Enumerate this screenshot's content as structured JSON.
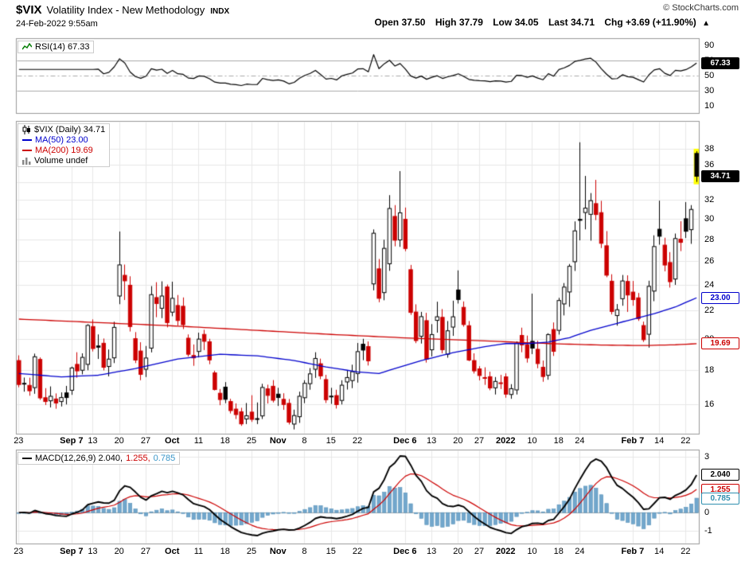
{
  "header": {
    "symbol": "$VIX",
    "title": "Volatility Index - New Methodology",
    "exchange": "INDX",
    "copyright": "© StockCharts.com",
    "datetime": "24-Feb-2022 9:55am",
    "quote": {
      "open_label": "Open",
      "open_value": "37.50",
      "high_label": "High",
      "high_value": "37.79",
      "low_label": "Low",
      "low_value": "34.05",
      "last_label": "Last",
      "last_value": "34.71",
      "chg_label": "Chg",
      "chg_value": "+3.69 (+11.90%)",
      "direction_arrow": "▲"
    }
  },
  "rsi_panel": {
    "legend": "RSI(14) 67.33",
    "period": 14,
    "y_tick_values": [
      90,
      70,
      50,
      30,
      10
    ],
    "guides": {
      "solid": [
        70,
        30
      ],
      "dashdot": [
        50
      ]
    },
    "badges": [
      {
        "text": "67.33",
        "value": 67.33,
        "style": "solid-black",
        "name": "rsi-value-badge"
      }
    ],
    "scale": {
      "min": 0,
      "max": 100
    }
  },
  "main_panel": {
    "legend_symbol": "$VIX (Daily) 34.71",
    "legend_ma50": "MA(50) 23.00",
    "legend_ma200": "MA(200) 19.69",
    "legend_volume": "Volume undef",
    "y_tick_values": [
      38,
      36,
      32,
      30,
      28,
      26,
      24,
      22,
      20,
      18,
      16
    ],
    "gridline_values": [
      38,
      36,
      34,
      32,
      30,
      28,
      26,
      24,
      22,
      20,
      18,
      16
    ],
    "badges": [
      {
        "text": "34.71",
        "value": 34.71,
        "style": "solid-black",
        "name": "last-price-badge"
      },
      {
        "text": "23.00",
        "value": 23.0,
        "style": "outline-blue",
        "name": "ma50-value-badge"
      },
      {
        "text": "19.69",
        "value": 19.69,
        "style": "outline-red",
        "name": "ma200-value-badge"
      }
    ],
    "scale": {
      "min": 14.5,
      "max": 41.8,
      "log": true
    }
  },
  "macd_panel": {
    "legend_line": "MACD(12,26,9) 2.040,",
    "legend_signal": "1.255,",
    "legend_hist": "0.785",
    "params": {
      "fast": 12,
      "slow": 26,
      "signal": 9
    },
    "y_tick_values": [
      3,
      0,
      -1
    ],
    "badges": [
      {
        "text": "2.040",
        "value": 2.04,
        "style": "outline-black",
        "name": "macd-value-badge"
      },
      {
        "text": "1.255",
        "value": 1.255,
        "style": "outline-red",
        "name": "signal-value-badge"
      },
      {
        "text": "0.785",
        "value": 0.785,
        "style": "outline-teal",
        "name": "histogram-value-badge"
      }
    ],
    "scale": {
      "min": -1.7,
      "max": 3.4
    }
  },
  "x_axis": {
    "ticks": [
      {
        "i": 0,
        "label": "23"
      },
      {
        "i": 10,
        "label": "Sep 7",
        "bold": true
      },
      {
        "i": 14,
        "label": "13"
      },
      {
        "i": 19,
        "label": "20"
      },
      {
        "i": 24,
        "label": "27"
      },
      {
        "i": 29,
        "label": "Oct",
        "bold": true
      },
      {
        "i": 34,
        "label": "11"
      },
      {
        "i": 39,
        "label": "18"
      },
      {
        "i": 44,
        "label": "25"
      },
      {
        "i": 49,
        "label": "Nov",
        "bold": true
      },
      {
        "i": 54,
        "label": "8"
      },
      {
        "i": 59,
        "label": "15"
      },
      {
        "i": 64,
        "label": "22"
      },
      {
        "i": 73,
        "label": "Dec 6",
        "bold": true
      },
      {
        "i": 78,
        "label": "13"
      },
      {
        "i": 83,
        "label": "20"
      },
      {
        "i": 87,
        "label": "27"
      },
      {
        "i": 92,
        "label": "2022",
        "bold": true
      },
      {
        "i": 97,
        "label": "10"
      },
      {
        "i": 102,
        "label": "18"
      },
      {
        "i": 106,
        "label": "24"
      },
      {
        "i": 116,
        "label": "Feb 7",
        "bold": true
      },
      {
        "i": 121,
        "label": "14"
      },
      {
        "i": 126,
        "label": "22"
      }
    ]
  },
  "colors": {
    "candle_up": "#000000",
    "candle_down": "#cc0000",
    "ma50": "#0000cc",
    "ma200": "#cc0000",
    "rsi_line": "#000000",
    "macd_line": "#000000",
    "signal_line": "#cc0000",
    "hist_fill": "#72a7cc",
    "hist_stroke": "#5590b8",
    "grid": "#e7e7e7",
    "guide": "#aaaaaa",
    "panel_border": "#999999",
    "highlight": "#ffff00"
  },
  "chart_data": {
    "type": "candlestick",
    "symbol": "$VIX",
    "timeframe": "Daily",
    "title": "$VIX Volatility Index - New Methodology (Daily)",
    "last": 34.71,
    "ma50_last": 23.0,
    "ma200_last": 19.69,
    "rsi_last": 67.33,
    "macd_last": 2.04,
    "signal_last": 1.255,
    "hist_last": 0.785,
    "candles": [
      [
        18.6,
        18.93,
        16.99,
        17.15
      ],
      [
        17.19,
        17.56,
        16.74,
        17.22
      ],
      [
        17.1,
        17.55,
        16.51,
        16.79
      ],
      [
        16.97,
        19.04,
        16.62,
        18.84
      ],
      [
        18.67,
        18.8,
        16.28,
        16.39
      ],
      [
        16.4,
        16.94,
        16.0,
        16.19
      ],
      [
        16.23,
        17.04,
        15.87,
        16.48
      ],
      [
        16.33,
        16.64,
        15.8,
        16.11
      ],
      [
        16.19,
        16.7,
        15.92,
        16.41
      ],
      [
        16.67,
        17.07,
        16.03,
        16.41
      ],
      [
        16.82,
        18.22,
        16.56,
        18.14
      ],
      [
        18.36,
        19.13,
        17.55,
        17.96
      ],
      [
        18.0,
        19.06,
        17.75,
        18.8
      ],
      [
        18.36,
        21.04,
        18.0,
        20.95
      ],
      [
        20.87,
        21.38,
        19.18,
        19.37
      ],
      [
        19.54,
        20.32,
        18.7,
        19.46
      ],
      [
        19.72,
        20.04,
        17.99,
        18.18
      ],
      [
        18.23,
        19.31,
        17.63,
        18.69
      ],
      [
        18.77,
        21.21,
        18.44,
        20.81
      ],
      [
        23.14,
        28.79,
        22.51,
        25.71
      ],
      [
        24.82,
        25.74,
        22.83,
        24.36
      ],
      [
        24.0,
        24.74,
        20.52,
        20.87
      ],
      [
        20.03,
        20.48,
        18.44,
        18.63
      ],
      [
        19.21,
        19.79,
        17.4,
        17.75
      ],
      [
        18.06,
        19.54,
        17.59,
        18.76
      ],
      [
        19.4,
        23.93,
        19.12,
        23.25
      ],
      [
        23.02,
        24.25,
        21.54,
        22.56
      ],
      [
        22.2,
        24.32,
        21.47,
        23.14
      ],
      [
        23.86,
        24.06,
        20.81,
        21.15
      ],
      [
        21.91,
        24.29,
        21.61,
        22.96
      ],
      [
        22.41,
        23.22,
        20.94,
        21.3
      ],
      [
        22.35,
        23.03,
        20.69,
        21.0
      ],
      [
        20.06,
        20.32,
        18.85,
        19.0
      ],
      [
        18.92,
        19.64,
        18.27,
        18.77
      ],
      [
        19.18,
        20.44,
        18.8,
        20.0
      ],
      [
        20.32,
        20.64,
        19.27,
        19.85
      ],
      [
        19.82,
        20.02,
        18.37,
        18.64
      ],
      [
        17.84,
        17.97,
        16.81,
        16.86
      ],
      [
        16.65,
        16.89,
        15.99,
        16.3
      ],
      [
        17.0,
        17.29,
        16.1,
        16.31
      ],
      [
        16.19,
        16.34,
        15.55,
        15.7
      ],
      [
        15.78,
        16.09,
        15.26,
        15.49
      ],
      [
        15.64,
        15.85,
        14.91,
        15.01
      ],
      [
        15.26,
        16.11,
        15.0,
        15.43
      ],
      [
        15.62,
        16.54,
        15.11,
        15.24
      ],
      [
        15.28,
        16.14,
        15.0,
        15.24
      ],
      [
        15.42,
        17.19,
        15.26,
        16.98
      ],
      [
        16.9,
        17.14,
        16.08,
        16.53
      ],
      [
        17.05,
        17.41,
        16.14,
        16.26
      ],
      [
        16.6,
        16.96,
        15.95,
        16.41
      ],
      [
        16.31,
        16.65,
        15.74,
        16.03
      ],
      [
        16.09,
        16.33,
        14.98,
        15.1
      ],
      [
        15.0,
        15.75,
        14.73,
        15.44
      ],
      [
        15.38,
        16.74,
        15.06,
        16.48
      ],
      [
        16.4,
        17.4,
        16.1,
        17.22
      ],
      [
        17.2,
        18.13,
        16.85,
        17.78
      ],
      [
        18.06,
        19.13,
        17.54,
        18.73
      ],
      [
        18.4,
        18.72,
        17.46,
        17.66
      ],
      [
        17.44,
        17.72,
        16.11,
        16.29
      ],
      [
        16.45,
        16.96,
        16.06,
        16.49
      ],
      [
        16.52,
        16.85,
        15.81,
        16.02
      ],
      [
        16.25,
        17.4,
        16.03,
        17.11
      ],
      [
        17.3,
        18.0,
        16.86,
        17.56
      ],
      [
        17.38,
        18.34,
        16.94,
        17.91
      ],
      [
        17.8,
        19.74,
        17.26,
        19.17
      ],
      [
        19.66,
        20.02,
        18.62,
        19.27
      ],
      [
        19.5,
        19.84,
        18.29,
        18.58
      ],
      [
        24.11,
        28.99,
        23.59,
        28.62
      ],
      [
        25.37,
        26.23,
        22.66,
        22.96
      ],
      [
        23.41,
        28.0,
        22.81,
        27.19
      ],
      [
        25.81,
        32.56,
        25.2,
        31.12
      ],
      [
        30.3,
        31.48,
        27.38,
        27.95
      ],
      [
        27.98,
        35.32,
        27.33,
        30.67
      ],
      [
        30.0,
        31.22,
        26.93,
        27.18
      ],
      [
        25.3,
        25.71,
        21.71,
        21.89
      ],
      [
        21.92,
        22.5,
        19.73,
        19.9
      ],
      [
        20.19,
        21.93,
        19.7,
        21.58
      ],
      [
        21.29,
        21.86,
        18.47,
        18.69
      ],
      [
        19.29,
        21.04,
        18.86,
        20.31
      ],
      [
        21.31,
        22.7,
        20.44,
        21.57
      ],
      [
        21.53,
        22.14,
        19.06,
        19.29
      ],
      [
        19.0,
        21.26,
        18.78,
        20.57
      ],
      [
        20.83,
        22.78,
        20.22,
        21.57
      ],
      [
        23.62,
        25.24,
        22.56,
        22.87
      ],
      [
        22.27,
        22.72,
        20.86,
        21.01
      ],
      [
        20.93,
        21.26,
        18.56,
        18.63
      ],
      [
        18.6,
        19.06,
        17.8,
        17.96
      ],
      [
        18.08,
        18.25,
        17.39,
        17.68
      ],
      [
        17.56,
        18.18,
        17.13,
        17.54
      ],
      [
        17.61,
        17.91,
        16.82,
        16.95
      ],
      [
        16.96,
        17.59,
        16.58,
        17.33
      ],
      [
        17.25,
        17.72,
        16.89,
        17.22
      ],
      [
        17.6,
        17.81,
        16.4,
        16.6
      ],
      [
        16.58,
        17.17,
        16.34,
        16.91
      ],
      [
        16.84,
        19.85,
        16.58,
        19.73
      ],
      [
        20.25,
        20.79,
        19.13,
        19.61
      ],
      [
        19.62,
        20.24,
        18.47,
        18.76
      ],
      [
        19.85,
        23.33,
        19.01,
        19.4
      ],
      [
        19.32,
        19.89,
        18.12,
        18.41
      ],
      [
        18.18,
        18.6,
        17.31,
        17.62
      ],
      [
        17.69,
        20.4,
        17.43,
        20.31
      ],
      [
        20.66,
        21.16,
        18.89,
        19.19
      ],
      [
        20.6,
        23.0,
        20.31,
        22.79
      ],
      [
        22.53,
        24.18,
        21.67,
        23.85
      ],
      [
        23.46,
        25.79,
        22.31,
        25.59
      ],
      [
        25.99,
        29.79,
        25.19,
        28.85
      ],
      [
        30.0,
        38.94,
        27.94,
        29.9
      ],
      [
        30.7,
        34.75,
        29.0,
        31.16
      ],
      [
        30.51,
        32.79,
        27.91,
        31.96
      ],
      [
        31.64,
        34.29,
        29.92,
        30.49
      ],
      [
        30.69,
        31.94,
        27.22,
        27.66
      ],
      [
        27.43,
        28.83,
        24.66,
        24.83
      ],
      [
        24.33,
        24.91,
        21.74,
        21.96
      ],
      [
        21.66,
        22.52,
        20.93,
        22.09
      ],
      [
        22.93,
        24.85,
        22.39,
        24.35
      ],
      [
        24.31,
        24.82,
        21.93,
        23.22
      ],
      [
        23.45,
        24.35,
        22.39,
        22.86
      ],
      [
        23.0,
        23.38,
        21.27,
        21.44
      ],
      [
        20.94,
        21.22,
        19.81,
        19.96
      ],
      [
        20.33,
        24.37,
        19.43,
        23.91
      ],
      [
        23.53,
        28.42,
        22.74,
        27.36
      ],
      [
        29.01,
        31.96,
        27.53,
        28.33
      ],
      [
        27.49,
        28.19,
        25.16,
        25.7
      ],
      [
        25.92,
        26.85,
        23.81,
        24.29
      ],
      [
        24.51,
        28.59,
        24.03,
        28.11
      ],
      [
        28.05,
        29.81,
        26.94,
        27.75
      ],
      [
        30.06,
        31.8,
        28.16,
        28.81
      ],
      [
        28.97,
        31.48,
        27.61,
        31.02
      ],
      [
        37.5,
        37.79,
        34.05,
        34.71
      ]
    ],
    "ma50_points": [
      [
        0,
        17.8
      ],
      [
        8,
        17.6
      ],
      [
        15,
        17.7
      ],
      [
        22,
        18.1
      ],
      [
        30,
        18.7
      ],
      [
        38,
        19.0
      ],
      [
        45,
        18.9
      ],
      [
        52,
        18.6
      ],
      [
        58,
        18.2
      ],
      [
        64,
        17.9
      ],
      [
        68,
        17.8
      ],
      [
        72,
        18.2
      ],
      [
        76,
        18.6
      ],
      [
        82,
        19.1
      ],
      [
        88,
        19.5
      ],
      [
        92,
        19.7
      ],
      [
        96,
        19.7
      ],
      [
        100,
        19.8
      ],
      [
        104,
        20.1
      ],
      [
        108,
        20.6
      ],
      [
        112,
        21.0
      ],
      [
        116,
        21.4
      ],
      [
        120,
        21.8
      ],
      [
        124,
        22.3
      ],
      [
        128,
        23.0
      ]
    ],
    "ma200_points": [
      [
        0,
        21.4
      ],
      [
        15,
        21.15
      ],
      [
        30,
        20.9
      ],
      [
        45,
        20.6
      ],
      [
        60,
        20.3
      ],
      [
        75,
        20.05
      ],
      [
        90,
        19.85
      ],
      [
        100,
        19.7
      ],
      [
        110,
        19.6
      ],
      [
        118,
        19.57
      ],
      [
        124,
        19.62
      ],
      [
        128,
        19.69
      ]
    ]
  }
}
